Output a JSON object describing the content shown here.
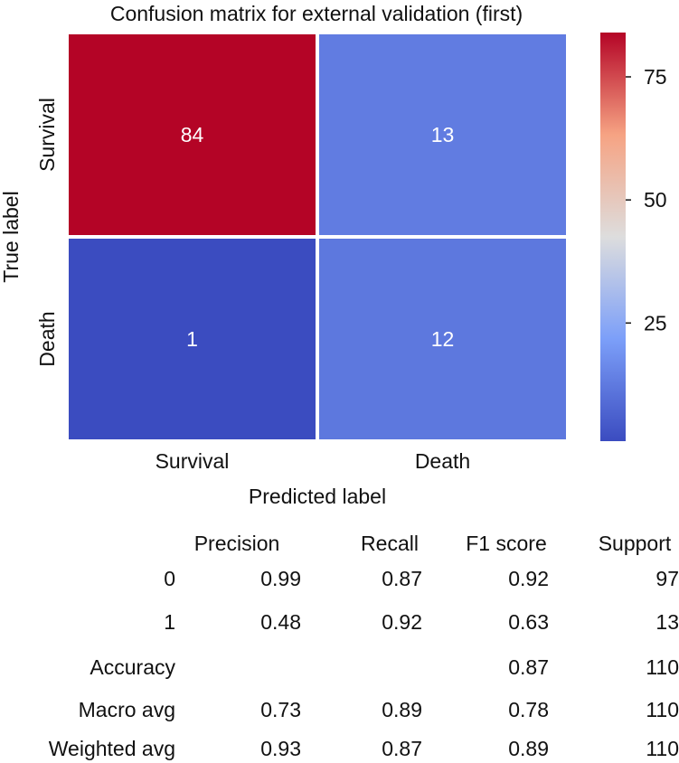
{
  "chart_data": {
    "type": "heatmap",
    "title": "Confusion matrix for external validation (first)",
    "xlabel": "Predicted label",
    "ylabel": "True label",
    "x_categories": [
      "Survival",
      "Death"
    ],
    "y_categories": [
      "Survival",
      "Death"
    ],
    "values": [
      [
        84,
        13
      ],
      [
        1,
        12
      ]
    ],
    "colorbar": {
      "colormap": "coolwarm",
      "min": 1,
      "max": 84,
      "ticks": [
        25,
        50,
        75
      ]
    }
  },
  "report": {
    "columns": [
      "Precision",
      "Recall",
      "F1 score",
      "Support"
    ],
    "rows": [
      {
        "label": "0",
        "values": [
          "0.99",
          "0.87",
          "0.92",
          "97"
        ]
      },
      {
        "label": "1",
        "values": [
          "0.48",
          "0.92",
          "0.63",
          "13"
        ]
      },
      {
        "label": "Accuracy",
        "values": [
          "",
          "",
          "0.87",
          "110"
        ]
      },
      {
        "label": "Macro avg",
        "values": [
          "0.73",
          "0.89",
          "0.78",
          "110"
        ]
      },
      {
        "label": "Weighted avg",
        "values": [
          "0.93",
          "0.87",
          "0.89",
          "110"
        ]
      }
    ]
  }
}
